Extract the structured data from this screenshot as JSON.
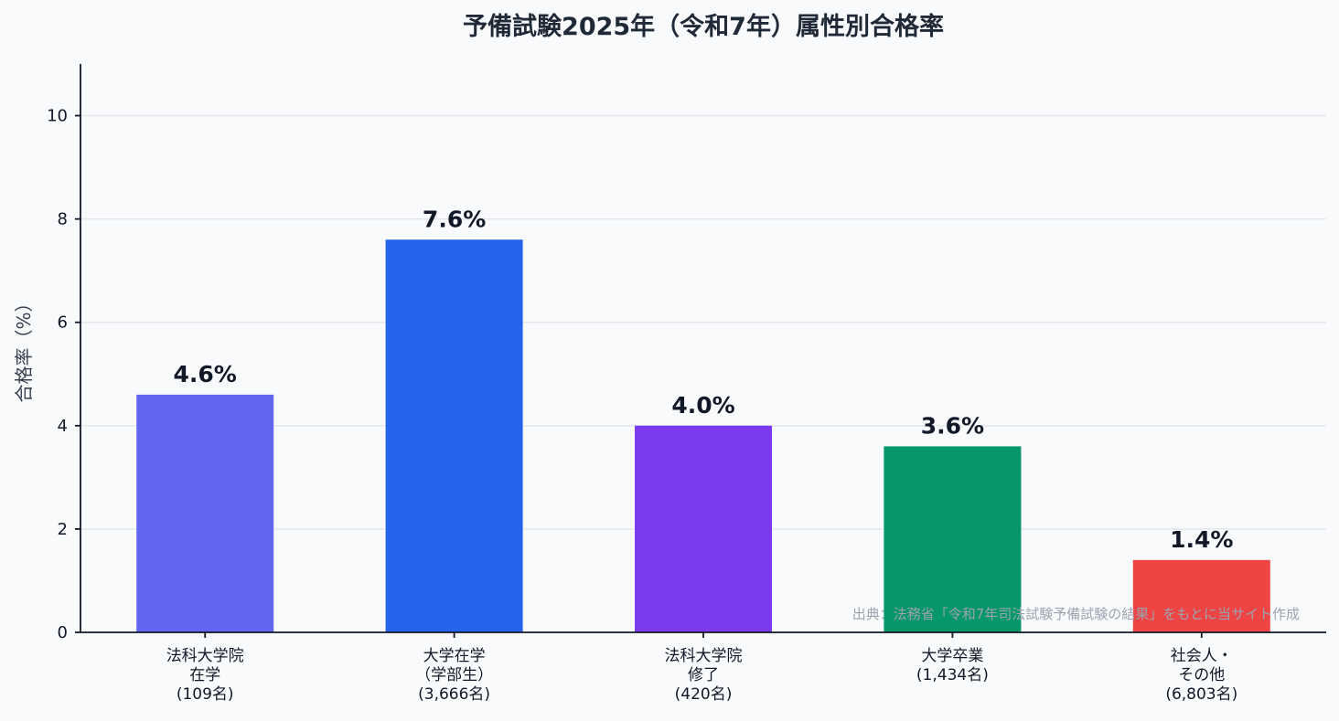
{
  "chart_data": {
    "type": "bar",
    "title": "予備試験2025年（令和7年）属性別合格率",
    "ylabel": "合格率（%）",
    "xlabel": "",
    "ylim": [
      0,
      11
    ],
    "yticks": [
      0,
      2,
      4,
      6,
      8,
      10
    ],
    "grid": "horizontal",
    "categories": [
      [
        "法科大学院",
        "在学",
        "(109名)"
      ],
      [
        "大学在学",
        "（学部生）",
        "(3,666名)"
      ],
      [
        "法科大学院",
        "修了",
        "(420名)"
      ],
      [
        "大学卒業",
        "(1,434名)"
      ],
      [
        "社会人・",
        "その他",
        "(6,803名)"
      ]
    ],
    "values": [
      4.6,
      7.6,
      4.0,
      3.6,
      1.4
    ],
    "data_labels": [
      "4.6%",
      "7.6%",
      "4.0%",
      "3.6%",
      "1.4%"
    ],
    "colors": [
      "#6366f1",
      "#2563eb",
      "#7c3aed",
      "#059669",
      "#ef4444"
    ],
    "source": "出典：法務省「令和7年司法試験予備試験の結果」をもとに当サイト作成"
  }
}
